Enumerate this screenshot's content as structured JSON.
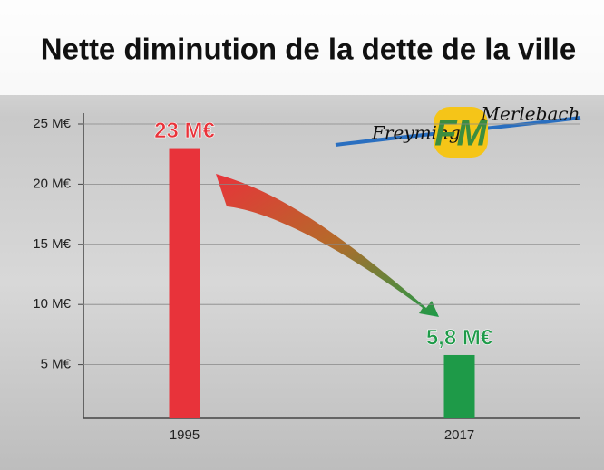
{
  "chart_data": {
    "type": "bar",
    "title": "Nette diminution de la dette de la ville",
    "categories": [
      "1995",
      "2017"
    ],
    "values": [
      23,
      5.8
    ],
    "value_labels": [
      "23 M€",
      "5,8 M€"
    ],
    "colors": [
      "#e8333a",
      "#1e9a48"
    ],
    "ylim": [
      0,
      25
    ],
    "yticks": [
      {
        "value": 5,
        "label": "5 M€"
      },
      {
        "value": 10,
        "label": "10 M€"
      },
      {
        "value": 15,
        "label": "15 M€"
      },
      {
        "value": 20,
        "label": "20 M€"
      },
      {
        "value": 25,
        "label": "25 M€"
      }
    ],
    "grid": true,
    "annotations": [
      "Freyming",
      "FM",
      "Merlebach"
    ]
  }
}
